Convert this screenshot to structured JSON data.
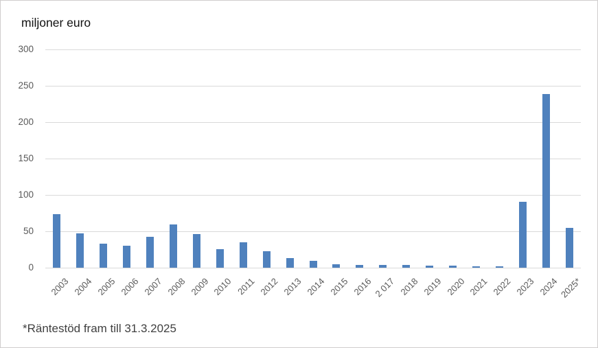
{
  "chart": {
    "title": "miljoner euro",
    "footnote": "*Räntestöd fram till 31.3.2025",
    "bar_color": "#4F81BD",
    "gridline_color": "#D9D9D9",
    "axis_text_color": "#595959"
  },
  "chart_data": {
    "type": "bar",
    "title": "miljoner euro",
    "subtitle": "",
    "xlabel": "",
    "ylabel": "miljoner euro",
    "categories": [
      "2003",
      "2004",
      "2005",
      "2006",
      "2007",
      "2008",
      "2009",
      "2010",
      "2011",
      "2012",
      "2013",
      "2014",
      "2015",
      "2016",
      "2 017",
      "2018",
      "2019",
      "2020",
      "2021",
      "2022",
      "2023",
      "2024",
      "2025*"
    ],
    "values": [
      74,
      47,
      33,
      30,
      42,
      59,
      46,
      25,
      35,
      23,
      13,
      9,
      5,
      4,
      4,
      4,
      3,
      3,
      2,
      2,
      91,
      239,
      55
    ],
    "ylim": [
      0,
      300
    ],
    "yticks": [
      0,
      50,
      100,
      150,
      200,
      250,
      300
    ],
    "grid": true,
    "legend": false,
    "bar_color": "#4F81BD",
    "footnote": "*Räntestöd fram till 31.3.2025"
  }
}
